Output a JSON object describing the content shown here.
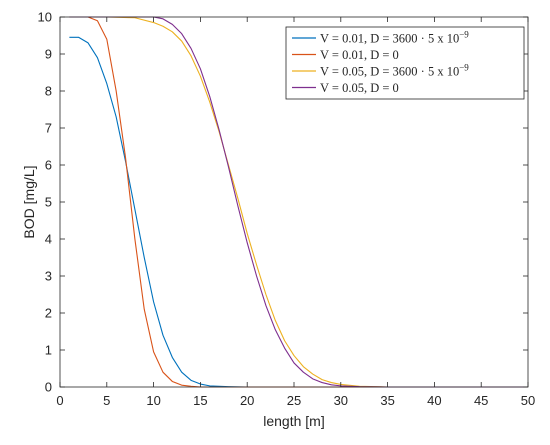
{
  "chart_data": {
    "type": "line",
    "title": "",
    "xlabel": "length [m]",
    "ylabel": "BOD [mg/L]",
    "xlim": [
      0,
      50
    ],
    "ylim": [
      0,
      10
    ],
    "xticks": [
      0,
      5,
      10,
      15,
      20,
      25,
      30,
      35,
      40,
      45,
      50
    ],
    "yticks": [
      0,
      1,
      2,
      3,
      4,
      5,
      6,
      7,
      8,
      9,
      10
    ],
    "grid": false,
    "legend_position": "top-right",
    "series": [
      {
        "name": "V = 0.01, D = 3600 · 5 x 10",
        "name_superscript": "−9",
        "color": "#0072BD",
        "points": [
          [
            1,
            9.45
          ],
          [
            2,
            9.45
          ],
          [
            3,
            9.3
          ],
          [
            4,
            8.9
          ],
          [
            5,
            8.2
          ],
          [
            6,
            7.3
          ],
          [
            7,
            6.1
          ],
          [
            8,
            4.8
          ],
          [
            9,
            3.5
          ],
          [
            10,
            2.3
          ],
          [
            11,
            1.4
          ],
          [
            12,
            0.8
          ],
          [
            13,
            0.4
          ],
          [
            14,
            0.18
          ],
          [
            15,
            0.08
          ],
          [
            16,
            0.03
          ],
          [
            18,
            0.01
          ],
          [
            20,
            0
          ],
          [
            25,
            0
          ],
          [
            30,
            0
          ],
          [
            35,
            0
          ],
          [
            40,
            0
          ],
          [
            45,
            0
          ],
          [
            50,
            0
          ]
        ]
      },
      {
        "name": "V = 0.01, D = 0",
        "color": "#D95319",
        "points": [
          [
            1,
            10
          ],
          [
            2,
            10
          ],
          [
            3,
            10
          ],
          [
            4,
            9.9
          ],
          [
            5,
            9.4
          ],
          [
            6,
            8.0
          ],
          [
            7,
            6.2
          ],
          [
            8,
            4.0
          ],
          [
            9,
            2.1
          ],
          [
            10,
            0.95
          ],
          [
            11,
            0.4
          ],
          [
            12,
            0.15
          ],
          [
            13,
            0.05
          ],
          [
            14,
            0.02
          ],
          [
            15,
            0
          ],
          [
            20,
            0
          ],
          [
            25,
            0
          ],
          [
            30,
            0
          ],
          [
            35,
            0
          ],
          [
            40,
            0
          ],
          [
            45,
            0
          ],
          [
            50,
            0
          ]
        ]
      },
      {
        "name": "V = 0.05, D = 3600 · 5 x 10",
        "name_superscript": "−9",
        "color": "#EDB120",
        "points": [
          [
            1,
            10
          ],
          [
            5,
            10
          ],
          [
            8,
            9.98
          ],
          [
            10,
            9.85
          ],
          [
            11,
            9.75
          ],
          [
            12,
            9.6
          ],
          [
            13,
            9.35
          ],
          [
            14,
            8.95
          ],
          [
            15,
            8.4
          ],
          [
            16,
            7.7
          ],
          [
            17,
            6.9
          ],
          [
            18,
            6.0
          ],
          [
            19,
            5.1
          ],
          [
            20,
            4.15
          ],
          [
            21,
            3.3
          ],
          [
            22,
            2.5
          ],
          [
            23,
            1.8
          ],
          [
            24,
            1.25
          ],
          [
            25,
            0.85
          ],
          [
            26,
            0.55
          ],
          [
            27,
            0.35
          ],
          [
            28,
            0.2
          ],
          [
            29,
            0.12
          ],
          [
            30,
            0.07
          ],
          [
            32,
            0.02
          ],
          [
            35,
            0
          ],
          [
            40,
            0
          ],
          [
            45,
            0
          ],
          [
            50,
            0
          ]
        ]
      },
      {
        "name": "V = 0.05, D = 0",
        "color": "#7E2F8E",
        "points": [
          [
            1,
            10
          ],
          [
            5,
            10
          ],
          [
            8,
            10
          ],
          [
            10,
            10
          ],
          [
            11,
            9.95
          ],
          [
            12,
            9.8
          ],
          [
            13,
            9.55
          ],
          [
            14,
            9.15
          ],
          [
            15,
            8.6
          ],
          [
            16,
            7.85
          ],
          [
            17,
            6.95
          ],
          [
            18,
            5.95
          ],
          [
            19,
            4.9
          ],
          [
            20,
            3.9
          ],
          [
            21,
            3.0
          ],
          [
            22,
            2.2
          ],
          [
            23,
            1.55
          ],
          [
            24,
            1.05
          ],
          [
            25,
            0.65
          ],
          [
            26,
            0.4
          ],
          [
            27,
            0.22
          ],
          [
            28,
            0.12
          ],
          [
            29,
            0.06
          ],
          [
            30,
            0.03
          ],
          [
            32,
            0.01
          ],
          [
            35,
            0
          ],
          [
            40,
            0
          ],
          [
            45,
            0
          ],
          [
            50,
            0
          ]
        ]
      }
    ]
  }
}
